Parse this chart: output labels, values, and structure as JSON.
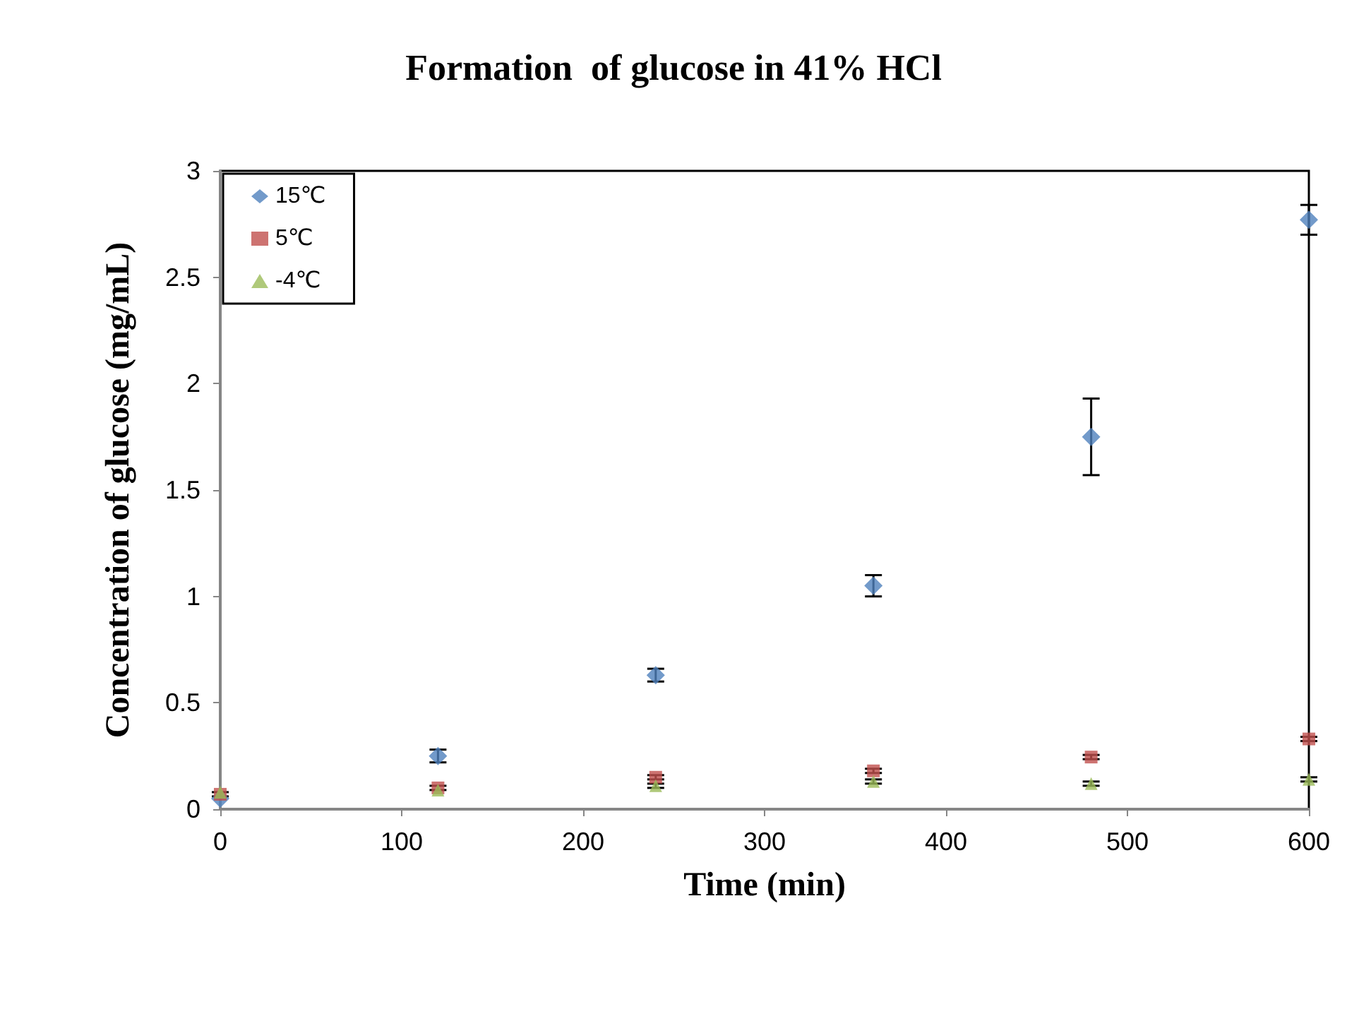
{
  "chart_data": {
    "type": "scatter",
    "title": "Formation  of glucose in 41% HCl",
    "xlabel": "Time (min)",
    "ylabel": "Concentration of glucose (mg/mL)",
    "x": [
      0,
      120,
      240,
      360,
      480,
      600
    ],
    "series": [
      {
        "name": "15℃",
        "color": "#4f81bd",
        "marker": "diamond",
        "values": [
          0.05,
          0.25,
          0.63,
          1.05,
          1.75,
          2.77
        ],
        "errors": [
          null,
          0.03,
          0.03,
          0.05,
          0.18,
          0.07
        ]
      },
      {
        "name": "5℃",
        "color": "#c0504d",
        "marker": "square",
        "values": [
          0.07,
          0.1,
          0.15,
          0.18,
          0.245,
          0.33
        ],
        "errors": [
          0.01,
          0.01,
          0.01,
          0.01,
          0.01,
          0.01
        ]
      },
      {
        "name": "-4℃",
        "color": "#9bbb59",
        "marker": "triangle",
        "values": [
          0.08,
          0.09,
          0.11,
          0.13,
          0.12,
          0.14
        ],
        "errors": [
          null,
          null,
          0.01,
          0.01,
          0.01,
          0.01
        ]
      }
    ],
    "xlim": [
      0,
      600
    ],
    "xticks": [
      0,
      100,
      200,
      300,
      400,
      500,
      600
    ],
    "ylim": [
      0,
      3
    ],
    "yticks": [
      0,
      0.5,
      1,
      1.5,
      2,
      2.5,
      3
    ],
    "grid": false,
    "legend": "top left"
  }
}
